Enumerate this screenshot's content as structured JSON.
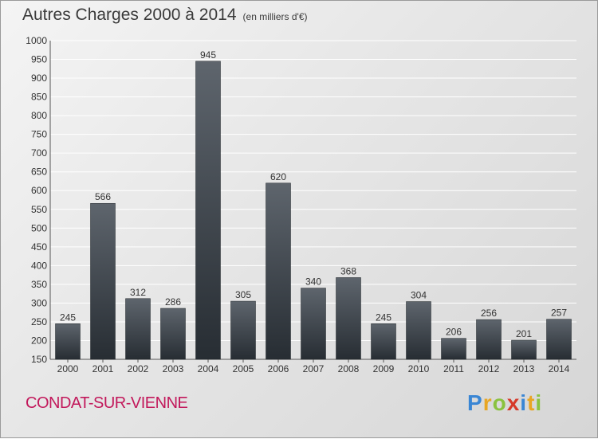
{
  "header": {
    "title": "Autres Charges 2000 à 2014",
    "subtitle": "(en milliers d'€)"
  },
  "footer": {
    "commune": "CONDAT-SUR-VIENNE",
    "logo_letters": [
      "P",
      "r",
      "o",
      "x",
      "i",
      "t",
      "i"
    ],
    "logo_colors": [
      "#3a86d4",
      "#e8a623",
      "#8ac23f",
      "#d63a2a",
      "#3a86d4",
      "#e8a623",
      "#8ac23f"
    ]
  },
  "chart_data": {
    "type": "bar",
    "categories": [
      "2000",
      "2001",
      "2002",
      "2003",
      "2004",
      "2005",
      "2006",
      "2007",
      "2008",
      "2009",
      "2010",
      "2011",
      "2012",
      "2013",
      "2014"
    ],
    "values": [
      245,
      566,
      312,
      286,
      945,
      305,
      620,
      340,
      368,
      245,
      304,
      206,
      256,
      201,
      257
    ],
    "ylim": [
      150,
      1000
    ],
    "yticks": [
      150,
      200,
      250,
      300,
      350,
      400,
      450,
      500,
      550,
      600,
      650,
      700,
      750,
      800,
      850,
      900,
      950,
      1000
    ],
    "grid": true,
    "bar_color_top": "#5e656d",
    "bar_color_bottom": "#272d33"
  }
}
